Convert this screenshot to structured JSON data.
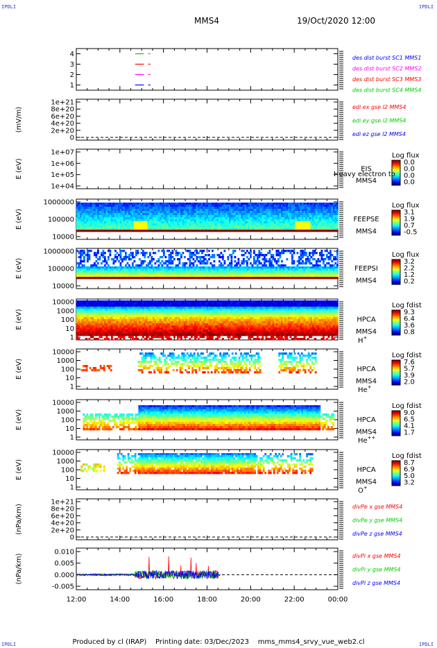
{
  "corner_label": "IPDLI",
  "header": {
    "title": "MMS4",
    "datetime": "19/Oct/2020 12:00"
  },
  "footer": {
    "producer": "Produced by cl (IRAP)",
    "print_date": "Printing date: 03/Dec/2023",
    "script": "mms_mms4_srvy_vue_web2.cl"
  },
  "time_axis": {
    "ticks": [
      "12:00",
      "14:00",
      "16:00",
      "18:00",
      "20:00",
      "22:00",
      "00:00"
    ],
    "range_hours": [
      0,
      12
    ]
  },
  "colors": {
    "red": "#ff0000",
    "green": "#00cc00",
    "blue": "#0000ff",
    "magenta": "#ff00ff"
  },
  "chart_data": [
    {
      "type": "line",
      "id": "burst",
      "yticks": [
        "1",
        "2",
        "3",
        "4"
      ],
      "ylim": [
        0.5,
        4.5
      ],
      "ylabel": "",
      "segments": [
        {
          "level": 4,
          "x": [
            2.7,
            3.1
          ],
          "color": "#00cc00"
        },
        {
          "level": 4,
          "x": [
            3.3,
            3.4
          ],
          "color": "#00cc00"
        },
        {
          "level": 3,
          "x": [
            2.7,
            3.1
          ],
          "color": "#ff0000"
        },
        {
          "level": 3,
          "x": [
            3.3,
            3.4
          ],
          "color": "#ff0000"
        },
        {
          "level": 2,
          "x": [
            2.7,
            3.1
          ],
          "color": "#ff00ff"
        },
        {
          "level": 2,
          "x": [
            3.3,
            3.4
          ],
          "color": "#ff00ff"
        },
        {
          "level": 1,
          "x": [
            2.7,
            3.1
          ],
          "color": "#0000ff"
        },
        {
          "level": 1,
          "x": [
            3.3,
            3.4
          ],
          "color": "#0000ff"
        }
      ],
      "legend": [
        {
          "text": "des dist burst SC1 MMS1",
          "color": "#0000ff"
        },
        {
          "text": "des dist burst SC2 MMS2",
          "color": "#ff00ff"
        },
        {
          "text": "des dist burst SC3 MMS3",
          "color": "#ff0000"
        },
        {
          "text": "des dist burst SC4 MMS4",
          "color": "#00cc00"
        }
      ]
    },
    {
      "type": "line",
      "id": "edi",
      "yticks": [
        "0",
        "2e+20",
        "4e+20",
        "6e+20",
        "8e+20",
        "1e+21"
      ],
      "ylabel": "(mV/m)",
      "zero_line": true,
      "legend": [
        {
          "text": "edi ex gse l2 MMS4",
          "color": "#ff0000"
        },
        {
          "text": "edi ey gse l2 MMS4",
          "color": "#00cc00"
        },
        {
          "text": "edi ez gse l2 MMS4",
          "color": "#0000ff"
        }
      ]
    },
    {
      "type": "heatmap",
      "id": "eis",
      "yticks": [
        "1e+04",
        "1e+05",
        "1e+06",
        "1e+07"
      ],
      "ylabel": "E (eV)",
      "right_labels": [
        "EIS",
        "MMS4"
      ],
      "overlap_label": "Heavy electron to",
      "cb_title": "Log flux",
      "cb_ticks": [
        "0.0",
        "0.0",
        "0.0",
        "0.0"
      ],
      "data_range": []
    },
    {
      "type": "heatmap",
      "id": "feepse",
      "yticks": [
        "10000",
        "100000",
        "1000000"
      ],
      "ylabel": "E (eV)",
      "right_labels": [
        "FEEPSE",
        "MMS4"
      ],
      "cb_title": "Log flux",
      "cb_ticks": [
        "3.1",
        "1.9",
        "0.7",
        "-0.5"
      ],
      "data_range": [
        0,
        12
      ]
    },
    {
      "type": "heatmap",
      "id": "feepsi",
      "yticks": [
        "10000",
        "100000",
        "1000000"
      ],
      "ylabel": "E (eV)",
      "right_labels": [
        "FEEPSI",
        "MMS4"
      ],
      "cb_title": "Log flux",
      "cb_ticks": [
        "3.2",
        "2.2",
        "1.2",
        "0.2"
      ],
      "data_range": [
        0,
        12
      ]
    },
    {
      "type": "heatmap",
      "id": "hpca_h",
      "yticks": [
        "1",
        "10",
        "100",
        "1000",
        "10000"
      ],
      "ylabel": "E (eV)",
      "right_labels": [
        "HPCA",
        "MMS4"
      ],
      "species": "H",
      "species_sup": "+",
      "cb_title": "Log fdist",
      "cb_ticks": [
        "9.3",
        "6.4",
        "3.6",
        "0.8"
      ],
      "data_range": [
        0,
        12
      ]
    },
    {
      "type": "heatmap",
      "id": "hpca_he",
      "yticks": [
        "1",
        "10",
        "100",
        "1000",
        "10000"
      ],
      "ylabel": "E (eV)",
      "right_labels": [
        "HPCA",
        "MMS4"
      ],
      "species": "He",
      "species_sup": "+",
      "cb_title": "Log fdist",
      "cb_ticks": [
        "7.6",
        "5.7",
        "3.9",
        "2.0"
      ],
      "data_range": [
        0.2,
        11
      ]
    },
    {
      "type": "heatmap",
      "id": "hpca_he2",
      "yticks": [
        "1",
        "10",
        "100",
        "1000",
        "10000"
      ],
      "ylabel": "E (eV)",
      "right_labels": [
        "HPCA",
        "MMS4"
      ],
      "species": "He",
      "species_sup": "++",
      "cb_title": "Log fdist",
      "cb_ticks": [
        "9.0",
        "6.5",
        "4.1",
        "1.7"
      ],
      "data_range": [
        0.3,
        11.8
      ]
    },
    {
      "type": "heatmap",
      "id": "hpca_o",
      "yticks": [
        "1",
        "10",
        "100",
        "1000",
        "10000"
      ],
      "ylabel": "E (eV)",
      "right_labels": [
        "HPCA",
        "MMS4"
      ],
      "species": "O",
      "species_sup": "+",
      "cb_title": "Log fdist",
      "cb_ticks": [
        "8.7",
        "6.9",
        "5.0",
        "3.2"
      ],
      "data_range": [
        0.2,
        11.5
      ]
    },
    {
      "type": "line",
      "id": "divpe",
      "yticks": [
        "0",
        "2e+20",
        "4e+20",
        "6e+20",
        "8e+20",
        "1e+21"
      ],
      "ylabel": "(nPa/km)",
      "zero_line": true,
      "legend": [
        {
          "text": "divPe x gse MMS4",
          "color": "#ff0000"
        },
        {
          "text": "divPe y gse MMS4",
          "color": "#00cc00"
        },
        {
          "text": "divPe z gse MMS4",
          "color": "#0000ff"
        }
      ]
    },
    {
      "type": "line",
      "id": "divpi",
      "yticks": [
        "-0.005",
        "0.000",
        "0.005",
        "0.010"
      ],
      "ylim": [
        -0.0065,
        0.0115
      ],
      "ylabel": "(nPa/km)",
      "zero_line": true,
      "data_range": [
        0,
        6.6
      ],
      "legend": [
        {
          "text": "divPi x gse MMS4",
          "color": "#ff0000"
        },
        {
          "text": "divPi y gse MMS4",
          "color": "#00cc00"
        },
        {
          "text": "divPi z gse MMS4",
          "color": "#0000ff"
        }
      ]
    }
  ]
}
